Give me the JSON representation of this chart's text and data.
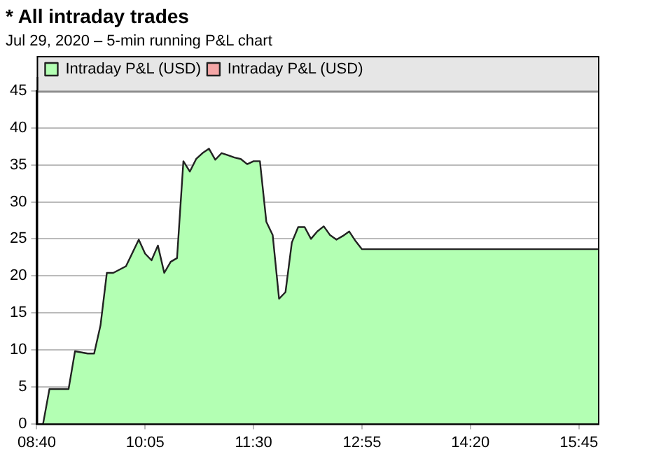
{
  "chart_data": {
    "type": "area",
    "title": "* All intraday trades",
    "subtitle": "Jul 29, 2020 – 5-min running P&L chart",
    "x": [
      8.75,
      8.833,
      9.083,
      9.167,
      9.333,
      9.417,
      9.5,
      9.583,
      9.667,
      9.833,
      10,
      10.083,
      10.167,
      10.25,
      10.333,
      10.417,
      10.5,
      10.583,
      10.667,
      10.75,
      10.833,
      10.917,
      11,
      11.083,
      11.167,
      11.25,
      11.333,
      11.417,
      11.5,
      11.583,
      11.667,
      11.75,
      11.833,
      11.917,
      12,
      12.083,
      12.167,
      12.25,
      12.333,
      12.417,
      12.5,
      12.583,
      12.667,
      12.75,
      12.833,
      12.917,
      13,
      16
    ],
    "series": [
      {
        "name": "Intraday P&L (USD)",
        "color": "#b3ffb3",
        "values": [
          0,
          4.7,
          4.7,
          9.8,
          9.5,
          9.5,
          13.3,
          20.4,
          20.4,
          21.3,
          24.9,
          23,
          22.1,
          24.1,
          20.4,
          21.9,
          22.4,
          35.5,
          34.1,
          35.8,
          36.6,
          37.2,
          35.7,
          36.6,
          36.3,
          36,
          35.8,
          35.1,
          35.5,
          35.5,
          27.3,
          25.5,
          16.9,
          17.8,
          24.5,
          26.6,
          26.6,
          25,
          26,
          26.7,
          25.5,
          24.9,
          25.4,
          26,
          24.7,
          23.6,
          23.6,
          23.6
        ]
      },
      {
        "name": "Intraday P&L (USD)",
        "color": "#f4a6a6",
        "values": [
          null,
          null,
          null,
          null,
          null,
          null,
          null,
          null,
          null,
          null,
          null,
          null,
          null,
          null,
          null,
          null,
          null,
          null,
          null,
          null,
          null,
          null,
          null,
          null,
          null,
          null,
          null,
          null,
          null,
          null,
          null,
          null,
          null,
          null,
          null,
          null,
          null,
          null,
          null,
          null,
          null,
          null,
          null,
          null,
          null,
          null,
          null,
          null
        ]
      }
    ],
    "xlim": [
      8.667,
      16
    ],
    "xticks": [
      {
        "value": 8.667,
        "label": "08:40"
      },
      {
        "value": 10.083,
        "label": "10:05"
      },
      {
        "value": 11.5,
        "label": "11:30"
      },
      {
        "value": 12.917,
        "label": "12:55"
      },
      {
        "value": 14.333,
        "label": "14:20"
      },
      {
        "value": 15.75,
        "label": "15:45"
      }
    ],
    "ylim": [
      0,
      45
    ],
    "yticks": [
      0,
      5,
      10,
      15,
      20,
      25,
      30,
      35,
      40,
      45
    ],
    "grid": "y",
    "legend": "top"
  }
}
